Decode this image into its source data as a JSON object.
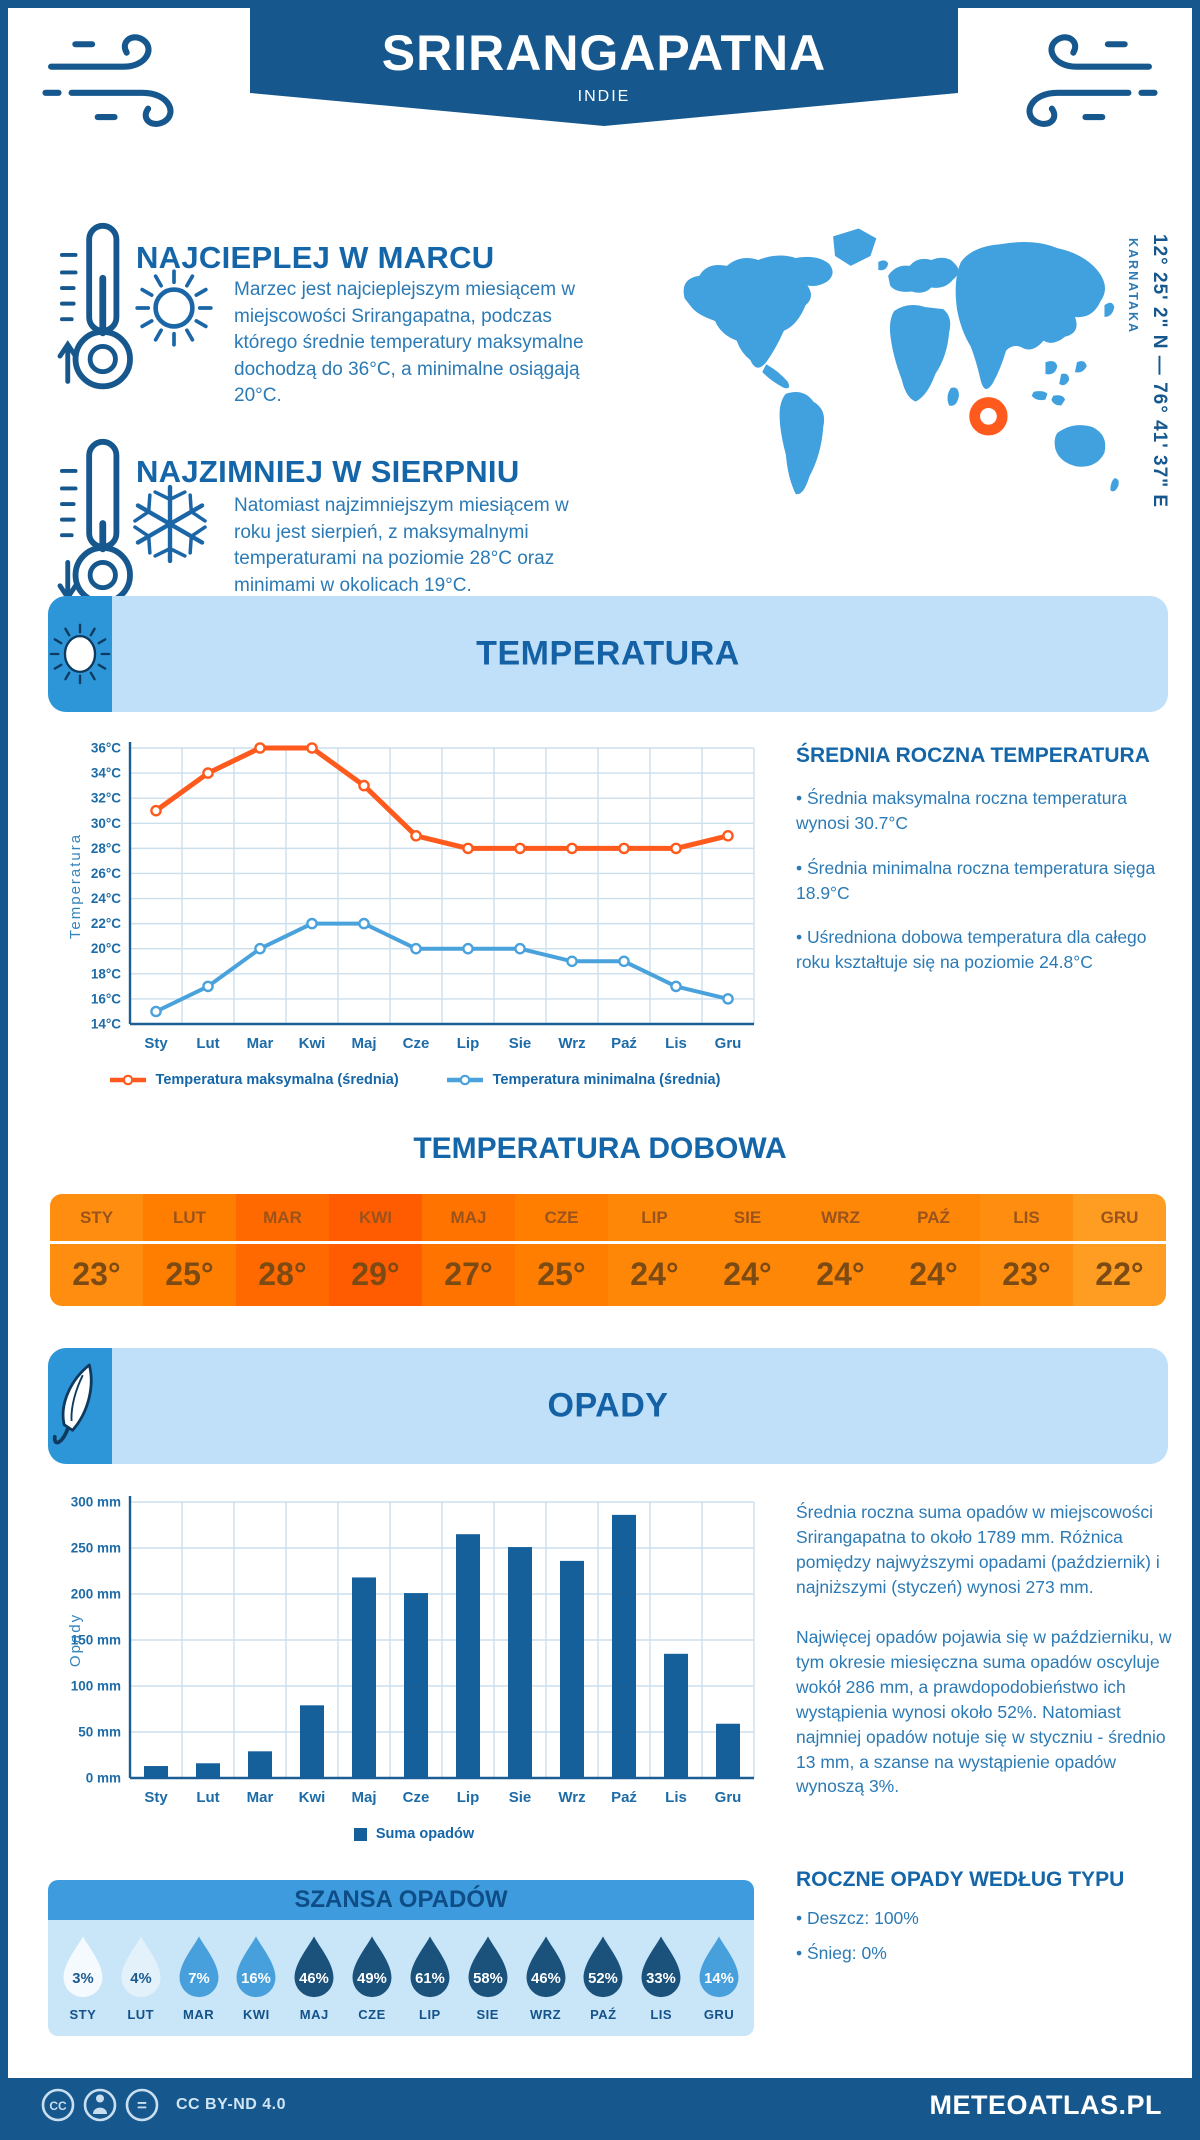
{
  "colors": {
    "brand": "#16588e",
    "heading": "#1566a8",
    "body_text": "#2b7ab5",
    "banner_bg": "#bfe0f8",
    "banner_tab": "#2d96d8",
    "map_fill": "#41a0de",
    "marker": "#ff5a1e",
    "grid": "#ccdfed",
    "axis": "#1b5e96",
    "chance_header_bg": "#3e9cde",
    "chance_body_bg": "#c9e5f8",
    "drop_white": "#f5fafe",
    "drop_light": "#e3f1fb",
    "drop_medium": "#47a0dc",
    "drop_dark": "#1a527c",
    "drop_text_light": "#1a5a8e",
    "drop_text_dark": "#ffffff"
  },
  "header": {
    "title": "SRIRANGAPATNA",
    "country": "INDIE",
    "coordinates": "12° 25' 2\" N — 76° 41' 37\" E",
    "region": "KARNATAKA"
  },
  "highlights": {
    "warmest": {
      "title": "NAJCIEPLEJ W MARCU",
      "text": "Marzec jest najcieplejszym miesiącem w miejscowości Srirangapatna, podczas którego średnie temperatury maksymalne dochodzą do 36°C, a minimalne osiągają 20°C."
    },
    "coldest": {
      "title": "NAJZIMNIEJ W SIERPNIU",
      "text": "Natomiast najzimniejszym miesiącem w roku jest sierpień, z maksymalnymi temperaturami na poziomie 28°C oraz minimami w okolicach 19°C."
    }
  },
  "temperature": {
    "banner": "TEMPERATURA",
    "summary": {
      "heading": "ŚREDNIA ROCZNA TEMPERATURA",
      "bullets": [
        "• Średnia maksymalna roczna temperatura wynosi 30.7°C",
        "• Średnia minimalna roczna temperatura sięga 18.9°C",
        "• Uśredniona dobowa temperatura dla całego roku kształtuje się na poziomie 24.8°C"
      ]
    },
    "daily": {
      "heading": "TEMPERATURA DOBOWA",
      "cells": [
        {
          "month": "STY",
          "value": "23°",
          "bg": "#ff8e10"
        },
        {
          "month": "LUT",
          "value": "25°",
          "bg": "#ff7e00"
        },
        {
          "month": "MAR",
          "value": "28°",
          "bg": "#ff6900"
        },
        {
          "month": "KWI",
          "value": "29°",
          "bg": "#ff5c02"
        },
        {
          "month": "MAJ",
          "value": "27°",
          "bg": "#ff7300"
        },
        {
          "month": "CZE",
          "value": "25°",
          "bg": "#ff7e00"
        },
        {
          "month": "LIP",
          "value": "24°",
          "bg": "#ff8708"
        },
        {
          "month": "SIE",
          "value": "24°",
          "bg": "#ff8708"
        },
        {
          "month": "WRZ",
          "value": "24°",
          "bg": "#ff8708"
        },
        {
          "month": "PAŹ",
          "value": "24°",
          "bg": "#ff8708"
        },
        {
          "month": "LIS",
          "value": "23°",
          "bg": "#ff8e10"
        },
        {
          "month": "GRU",
          "value": "22°",
          "bg": "#ff9c22"
        }
      ]
    }
  },
  "precipitation": {
    "banner": "OPADY",
    "paragraphs": [
      "Średnia roczna suma opadów w miejscowości Srirangapatna to około 1789 mm. Różnica pomiędzy najwyższymi opadami (październik) i najniższymi (styczeń) wynosi 273 mm.",
      "Najwięcej opadów pojawia się w październiku, w tym okresie miesięczna suma opadów oscyluje wokół 286 mm, a prawdopodobieństwo ich wystąpienia wynosi około 52%. Natomiast najmniej opadów notuje się w styczniu - średnio 13 mm, a szanse na wystąpienie opadów wynoszą 3%."
    ],
    "type_heading": "ROCZNE OPADY WEDŁUG TYPU",
    "type_bullets": [
      "• Deszcz: 100%",
      "• Śnieg: 0%"
    ],
    "chance": {
      "heading": "SZANSA OPADÓW",
      "items": [
        {
          "month": "STY",
          "value": "3%",
          "level": "white"
        },
        {
          "month": "LUT",
          "value": "4%",
          "level": "light"
        },
        {
          "month": "MAR",
          "value": "7%",
          "level": "medium"
        },
        {
          "month": "KWI",
          "value": "16%",
          "level": "medium"
        },
        {
          "month": "MAJ",
          "value": "46%",
          "level": "dark"
        },
        {
          "month": "CZE",
          "value": "49%",
          "level": "dark"
        },
        {
          "month": "LIP",
          "value": "61%",
          "level": "dark"
        },
        {
          "month": "SIE",
          "value": "58%",
          "level": "dark"
        },
        {
          "month": "WRZ",
          "value": "46%",
          "level": "dark"
        },
        {
          "month": "PAŹ",
          "value": "52%",
          "level": "dark"
        },
        {
          "month": "LIS",
          "value": "33%",
          "level": "dark"
        },
        {
          "month": "GRU",
          "value": "14%",
          "level": "medium"
        }
      ]
    }
  },
  "footer": {
    "license": "CC BY-ND 4.0",
    "site": "METEOATLAS.PL"
  },
  "chart_data": [
    {
      "name": "temperature-monthly",
      "type": "line",
      "categories": [
        "Sty",
        "Lut",
        "Mar",
        "Kwi",
        "Maj",
        "Cze",
        "Lip",
        "Sie",
        "Wrz",
        "Paź",
        "Lis",
        "Gru"
      ],
      "series": [
        {
          "name": "Temperatura maksymalna (średnia)",
          "color": "#ff5a1e",
          "values": [
            31,
            34,
            36,
            36,
            33,
            29,
            28,
            28,
            28,
            28,
            28,
            29
          ]
        },
        {
          "name": "Temperatura minimalna (średnia)",
          "color": "#4aa2dc",
          "values": [
            15,
            17,
            20,
            22,
            22,
            20,
            20,
            20,
            19,
            19,
            17,
            16
          ]
        }
      ],
      "ylabel": "Temperatura",
      "ylim": [
        14,
        36
      ],
      "ystep": 2,
      "yunit": "°C",
      "grid": true,
      "legend_position": "bottom"
    },
    {
      "name": "precipitation-monthly",
      "type": "bar",
      "categories": [
        "Sty",
        "Lut",
        "Mar",
        "Kwi",
        "Maj",
        "Cze",
        "Lip",
        "Sie",
        "Wrz",
        "Paź",
        "Lis",
        "Gru"
      ],
      "series": [
        {
          "name": "Suma opadów",
          "color": "#155f9b",
          "values": [
            13,
            16,
            29,
            79,
            218,
            201,
            265,
            251,
            236,
            286,
            135,
            59
          ]
        }
      ],
      "ylabel": "Opady",
      "ylim": [
        0,
        300
      ],
      "ystep": 50,
      "yunit": " mm",
      "grid": true,
      "legend_position": "bottom"
    }
  ]
}
